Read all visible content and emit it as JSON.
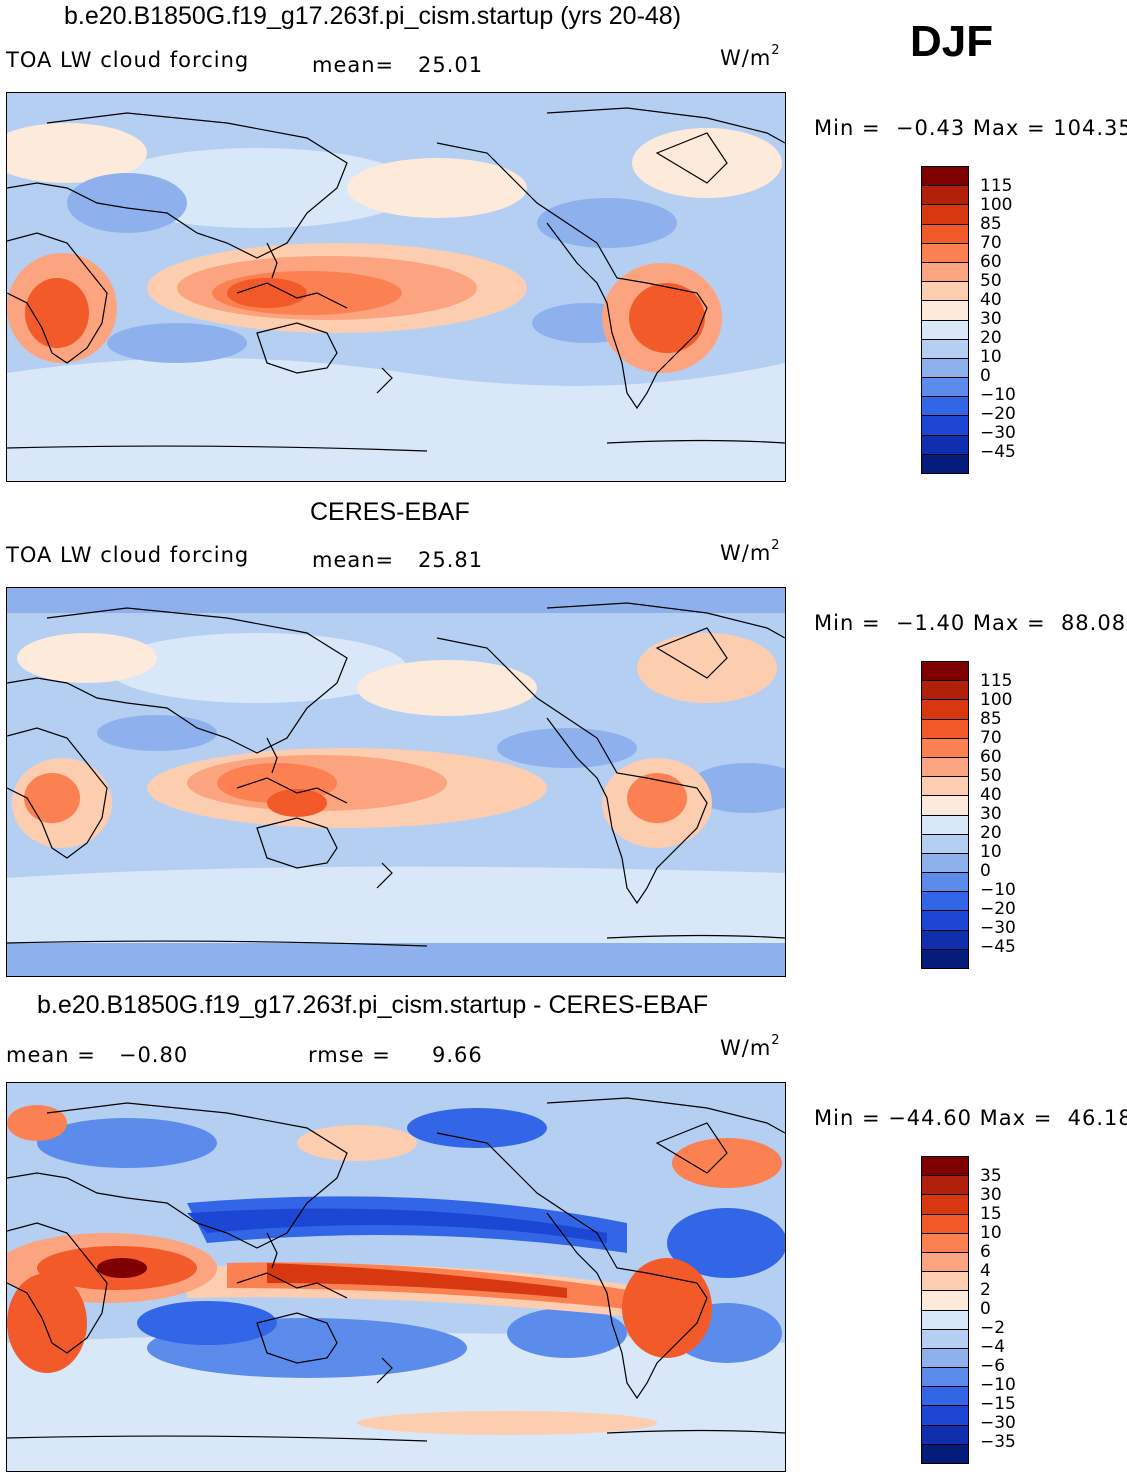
{
  "season": "DJF",
  "units_main": "W/m",
  "units_sup": "2",
  "panels": [
    {
      "title": "b.e20.B1850G.f19_g17.263f.pi_cism.startup (yrs 20-48)",
      "left_label": "TOA LW cloud forcing",
      "stat_label": "mean=",
      "stat_value": "25.01",
      "minmax": "Min =  −0.43 Max = 104.35",
      "levels": [
        "115",
        "100",
        "85",
        "70",
        "60",
        "50",
        "40",
        "30",
        "20",
        "10",
        "0",
        "−10",
        "−20",
        "−30",
        "−45"
      ]
    },
    {
      "title": "CERES-EBAF",
      "left_label": "TOA LW cloud forcing",
      "stat_label": "mean=",
      "stat_value": "25.81",
      "minmax": "Min =  −1.40 Max =  88.08",
      "levels": [
        "115",
        "100",
        "85",
        "70",
        "60",
        "50",
        "40",
        "30",
        "20",
        "10",
        "0",
        "−10",
        "−20",
        "−30",
        "−45"
      ]
    },
    {
      "title": "b.e20.B1850G.f19_g17.263f.pi_cism.startup - CERES-EBAF",
      "left_label": "mean =   −0.80",
      "stat_label": "rmse =",
      "stat_value": "9.66",
      "minmax": "Min = −44.60 Max =  46.18",
      "levels": [
        "35",
        "30",
        "15",
        "10",
        "6",
        "4",
        "2",
        "0",
        "−2",
        "−4",
        "−6",
        "−10",
        "−15",
        "−30",
        "−35"
      ]
    }
  ],
  "colors": {
    "scale": [
      "#7f0000",
      "#b0200a",
      "#d8380f",
      "#f25a2a",
      "#fb8052",
      "#fca47f",
      "#fdcdb0",
      "#fdeadb",
      "#d9e8f8",
      "#b5cff3",
      "#8eb1ee",
      "#5c8ceb",
      "#3366e6",
      "#1c46d4",
      "#0f2fae",
      "#061c7a"
    ],
    "land_outline": "#000000"
  },
  "chart_data": [
    {
      "type": "heatmap",
      "title": "b.e20.B1850G.f19_g17.263f.pi_cism.startup (yrs 20-48)",
      "variable": "TOA LW cloud forcing",
      "units": "W/m2",
      "mean": 25.01,
      "min": -0.43,
      "max": 104.35,
      "contour_levels": [
        -45,
        -30,
        -20,
        -10,
        0,
        10,
        20,
        30,
        40,
        50,
        60,
        70,
        85,
        100,
        115
      ]
    },
    {
      "type": "heatmap",
      "title": "CERES-EBAF",
      "variable": "TOA LW cloud forcing",
      "units": "W/m2",
      "mean": 25.81,
      "min": -1.4,
      "max": 88.08,
      "contour_levels": [
        -45,
        -30,
        -20,
        -10,
        0,
        10,
        20,
        30,
        40,
        50,
        60,
        70,
        85,
        100,
        115
      ]
    },
    {
      "type": "heatmap",
      "title": "b.e20.B1850G.f19_g17.263f.pi_cism.startup - CERES-EBAF",
      "units": "W/m2",
      "mean": -0.8,
      "rmse": 9.66,
      "min": -44.6,
      "max": 46.18,
      "contour_levels": [
        -35,
        -30,
        -15,
        -10,
        -6,
        -4,
        -2,
        0,
        2,
        4,
        6,
        10,
        15,
        30,
        35
      ]
    }
  ]
}
